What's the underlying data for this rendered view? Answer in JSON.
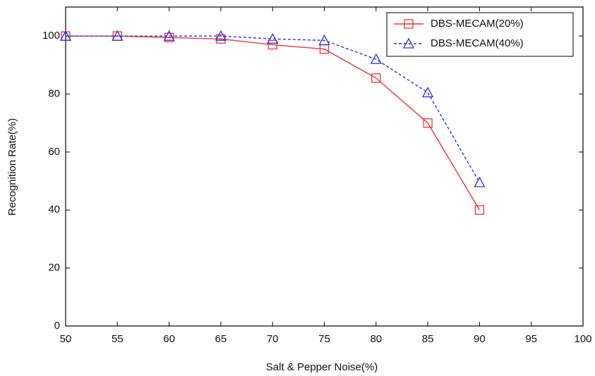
{
  "chart_data": {
    "type": "line",
    "x_label": "Salt & Pepper Noise(%)",
    "y_label": "Recognition Rate(%)",
    "x": [
      50,
      55,
      60,
      65,
      70,
      75,
      80,
      85,
      90
    ],
    "series": [
      {
        "name": "DBS-MECAM(20%)",
        "color": "#e8353b",
        "marker": "square",
        "dashed": false,
        "values": [
          100,
          100,
          99.5,
          99,
          97,
          95.5,
          85.5,
          70,
          40
        ]
      },
      {
        "name": "DBS-MECAM(40%)",
        "color": "#2a2ee0",
        "marker": "triangle",
        "dashed": true,
        "values": [
          100,
          100,
          100,
          100,
          99,
          98.5,
          92,
          80.5,
          49.5
        ]
      }
    ],
    "xlim": [
      50,
      100
    ],
    "xticks": [
      50,
      55,
      60,
      65,
      70,
      75,
      80,
      85,
      90,
      95,
      100
    ],
    "ylim": [
      0,
      110
    ],
    "yticks": [
      0,
      20,
      40,
      60,
      80,
      100
    ],
    "grid": false,
    "legend": "upper right"
  }
}
